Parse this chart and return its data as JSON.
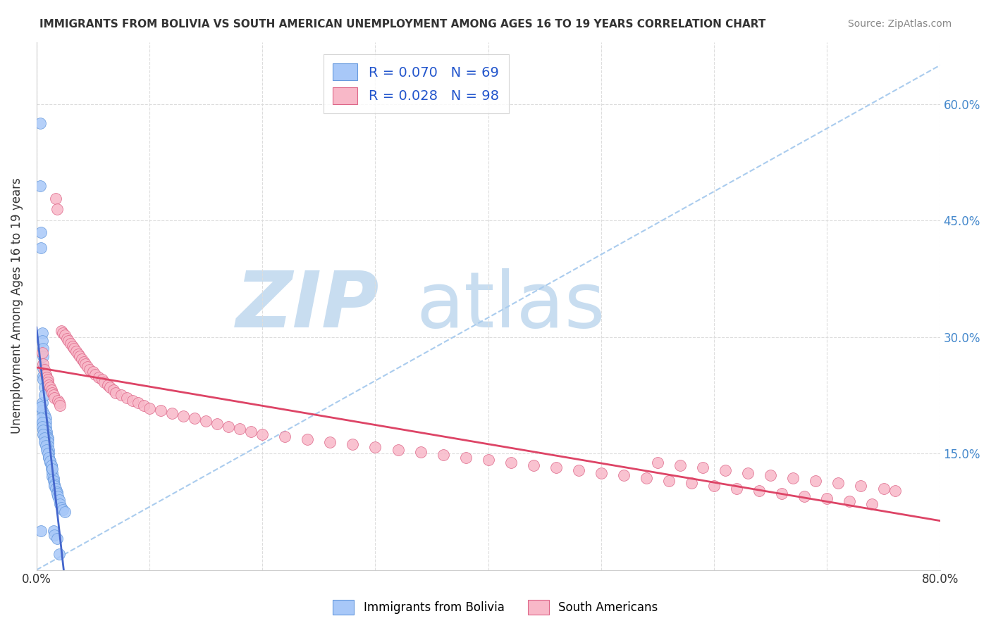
{
  "title": "IMMIGRANTS FROM BOLIVIA VS SOUTH AMERICAN UNEMPLOYMENT AMONG AGES 16 TO 19 YEARS CORRELATION CHART",
  "source": "Source: ZipAtlas.com",
  "ylabel": "Unemployment Among Ages 16 to 19 years",
  "xlim": [
    0,
    0.8
  ],
  "ylim": [
    0,
    0.68
  ],
  "blue_R": 0.07,
  "blue_N": 69,
  "pink_R": 0.028,
  "pink_N": 98,
  "blue_color": "#a8c8f8",
  "blue_edge_color": "#6699dd",
  "pink_color": "#f8b8c8",
  "pink_edge_color": "#dd6688",
  "blue_line_color": "#4466cc",
  "pink_line_color": "#dd4466",
  "blue_dash_color": "#aaccee",
  "watermark_zip": "ZIP",
  "watermark_atlas": "atlas",
  "watermark_color_zip": "#c8ddf0",
  "watermark_color_atlas": "#c8ddf0",
  "background_color": "#ffffff",
  "legend_color": "#2255cc",
  "right_ytick_color": "#4488cc",
  "blue_x": [
    0.003,
    0.003,
    0.004,
    0.004,
    0.004,
    0.005,
    0.005,
    0.005,
    0.005,
    0.006,
    0.006,
    0.006,
    0.006,
    0.006,
    0.007,
    0.007,
    0.007,
    0.008,
    0.008,
    0.008,
    0.008,
    0.009,
    0.009,
    0.009,
    0.01,
    0.01,
    0.01,
    0.01,
    0.011,
    0.011,
    0.011,
    0.012,
    0.012,
    0.013,
    0.013,
    0.014,
    0.014,
    0.015,
    0.015,
    0.016,
    0.016,
    0.017,
    0.018,
    0.018,
    0.019,
    0.02,
    0.021,
    0.022,
    0.023,
    0.025,
    0.004,
    0.004,
    0.005,
    0.005,
    0.006,
    0.006,
    0.007,
    0.007,
    0.008,
    0.009,
    0.01,
    0.011,
    0.012,
    0.013,
    0.014,
    0.015,
    0.016,
    0.018,
    0.02
  ],
  "blue_y": [
    0.575,
    0.495,
    0.435,
    0.415,
    0.05,
    0.305,
    0.295,
    0.215,
    0.205,
    0.285,
    0.275,
    0.26,
    0.25,
    0.245,
    0.235,
    0.225,
    0.2,
    0.195,
    0.19,
    0.185,
    0.18,
    0.178,
    0.175,
    0.172,
    0.17,
    0.168,
    0.165,
    0.16,
    0.155,
    0.15,
    0.145,
    0.14,
    0.138,
    0.135,
    0.13,
    0.125,
    0.12,
    0.118,
    0.115,
    0.11,
    0.108,
    0.105,
    0.1,
    0.098,
    0.095,
    0.09,
    0.085,
    0.08,
    0.078,
    0.075,
    0.21,
    0.195,
    0.19,
    0.185,
    0.18,
    0.175,
    0.17,
    0.165,
    0.16,
    0.155,
    0.15,
    0.145,
    0.14,
    0.135,
    0.13,
    0.05,
    0.045,
    0.04,
    0.02
  ],
  "pink_x": [
    0.005,
    0.006,
    0.007,
    0.008,
    0.009,
    0.01,
    0.01,
    0.011,
    0.012,
    0.013,
    0.014,
    0.015,
    0.016,
    0.017,
    0.018,
    0.019,
    0.02,
    0.021,
    0.022,
    0.023,
    0.025,
    0.027,
    0.028,
    0.03,
    0.032,
    0.033,
    0.035,
    0.037,
    0.038,
    0.04,
    0.042,
    0.043,
    0.045,
    0.047,
    0.05,
    0.052,
    0.055,
    0.058,
    0.06,
    0.063,
    0.065,
    0.068,
    0.07,
    0.075,
    0.08,
    0.085,
    0.09,
    0.095,
    0.1,
    0.11,
    0.12,
    0.13,
    0.14,
    0.15,
    0.16,
    0.17,
    0.18,
    0.19,
    0.2,
    0.22,
    0.24,
    0.26,
    0.28,
    0.3,
    0.32,
    0.34,
    0.36,
    0.38,
    0.4,
    0.42,
    0.44,
    0.46,
    0.48,
    0.5,
    0.52,
    0.54,
    0.56,
    0.58,
    0.6,
    0.62,
    0.64,
    0.66,
    0.68,
    0.7,
    0.72,
    0.74,
    0.55,
    0.57,
    0.59,
    0.61,
    0.63,
    0.65,
    0.67,
    0.69,
    0.71,
    0.73,
    0.75,
    0.76
  ],
  "pink_y": [
    0.28,
    0.265,
    0.258,
    0.252,
    0.248,
    0.245,
    0.242,
    0.238,
    0.235,
    0.232,
    0.228,
    0.225,
    0.222,
    0.478,
    0.465,
    0.218,
    0.215,
    0.212,
    0.308,
    0.305,
    0.302,
    0.298,
    0.295,
    0.292,
    0.288,
    0.285,
    0.282,
    0.278,
    0.275,
    0.272,
    0.268,
    0.265,
    0.262,
    0.258,
    0.255,
    0.252,
    0.248,
    0.245,
    0.242,
    0.238,
    0.235,
    0.232,
    0.228,
    0.225,
    0.222,
    0.218,
    0.215,
    0.212,
    0.208,
    0.205,
    0.202,
    0.198,
    0.195,
    0.192,
    0.188,
    0.185,
    0.182,
    0.178,
    0.175,
    0.172,
    0.168,
    0.165,
    0.162,
    0.158,
    0.155,
    0.152,
    0.148,
    0.145,
    0.142,
    0.138,
    0.135,
    0.132,
    0.128,
    0.125,
    0.122,
    0.118,
    0.115,
    0.112,
    0.108,
    0.105,
    0.102,
    0.098,
    0.095,
    0.092,
    0.088,
    0.085,
    0.138,
    0.135,
    0.132,
    0.128,
    0.125,
    0.122,
    0.118,
    0.115,
    0.112,
    0.108,
    0.105,
    0.102
  ]
}
